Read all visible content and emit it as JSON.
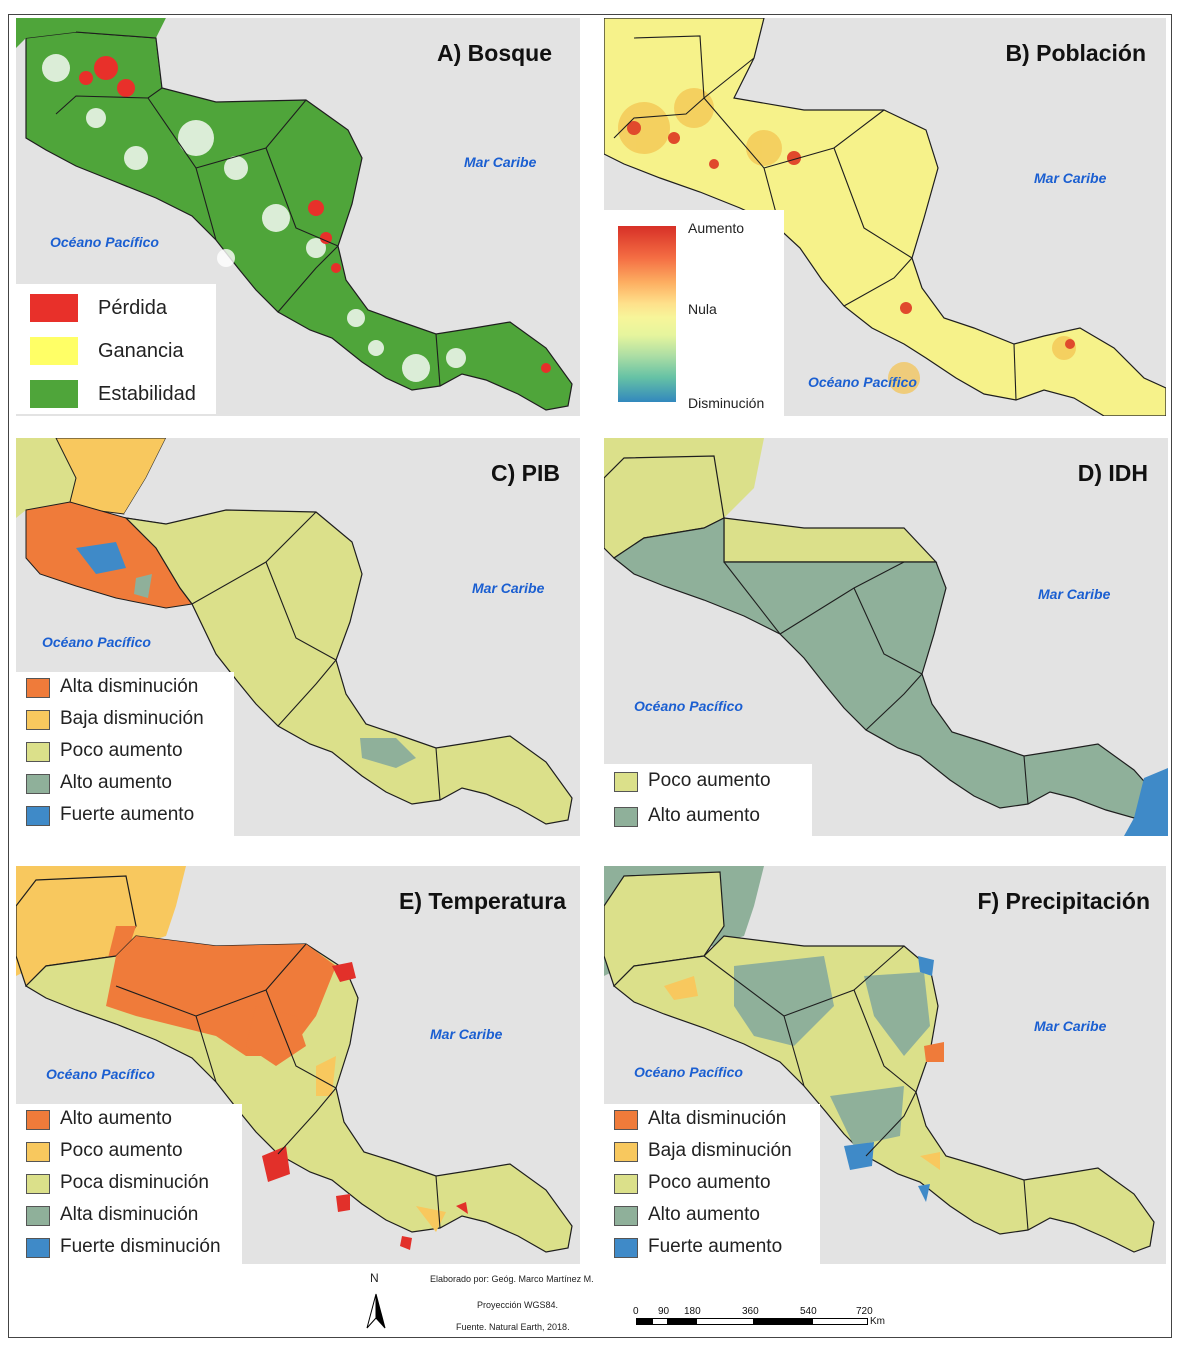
{
  "panels": {
    "a": {
      "title": "A) Bosque",
      "sea_caribe": "Mar Caribe",
      "sea_pacifico": "Océano Pacífico",
      "legend": [
        {
          "label": "Pérdida",
          "color": "#e8302a"
        },
        {
          "label": "Ganancia",
          "color": "#ffff66"
        },
        {
          "label": "Estabilidad",
          "color": "#4fa53a"
        }
      ]
    },
    "b": {
      "title": "B) Población",
      "sea_caribe": "Mar Caribe",
      "sea_pacifico": "Océano Pacífico",
      "legend": {
        "high": "Aumento",
        "mid": "Nula",
        "low": "Disminución"
      }
    },
    "c": {
      "title": "C) PIB",
      "sea_caribe": "Mar Caribe",
      "sea_pacifico": "Océano Pacífico",
      "legend": [
        {
          "label": "Alta disminución",
          "color": "#ef7b3a"
        },
        {
          "label": "Baja disminución",
          "color": "#f8c85e"
        },
        {
          "label": "Poco aumento",
          "color": "#dbe08a"
        },
        {
          "label": "Alto aumento",
          "color": "#8fb09a"
        },
        {
          "label": "Fuerte aumento",
          "color": "#3f8ac8"
        }
      ]
    },
    "d": {
      "title": "D) IDH",
      "sea_caribe": "Mar Caribe",
      "sea_pacifico": "Océano Pacífico",
      "legend": [
        {
          "label": "Poco aumento",
          "color": "#dbe08a"
        },
        {
          "label": "Alto aumento",
          "color": "#8fb09a"
        }
      ]
    },
    "e": {
      "title": "E) Temperatura",
      "sea_caribe": "Mar Caribe",
      "sea_pacifico": "Océano Pacífico",
      "legend": [
        {
          "label": "Alto aumento",
          "color": "#ef7b3a"
        },
        {
          "label": "Poco aumento",
          "color": "#f8c85e"
        },
        {
          "label": "Poca disminución",
          "color": "#dbe08a"
        },
        {
          "label": "Alta disminución",
          "color": "#8fb09a"
        },
        {
          "label": "Fuerte disminución",
          "color": "#3f8ac8"
        }
      ]
    },
    "f": {
      "title": "F) Precipitación",
      "sea_caribe": "Mar Caribe",
      "sea_pacifico": "Océano Pacífico",
      "legend": [
        {
          "label": "Alta disminución",
          "color": "#ef7b3a"
        },
        {
          "label": "Baja disminución",
          "color": "#f8c85e"
        },
        {
          "label": "Poco aumento",
          "color": "#dbe08a"
        },
        {
          "label": "Alto aumento",
          "color": "#8fb09a"
        },
        {
          "label": "Fuerte aumento",
          "color": "#3f8ac8"
        }
      ]
    }
  },
  "footer": {
    "north": "N",
    "author": "Elaborado por: Geóg. Marco Martínez M.",
    "projection": "Proyección WGS84.",
    "source": "Fuente. Natural Earth, 2018.",
    "scale_ticks": [
      "0",
      "90",
      "180",
      "360",
      "540",
      "720"
    ],
    "scale_unit": "Km"
  },
  "colors": {
    "sea": "#e3e3e3",
    "sea_label": "#1b5fd1"
  }
}
